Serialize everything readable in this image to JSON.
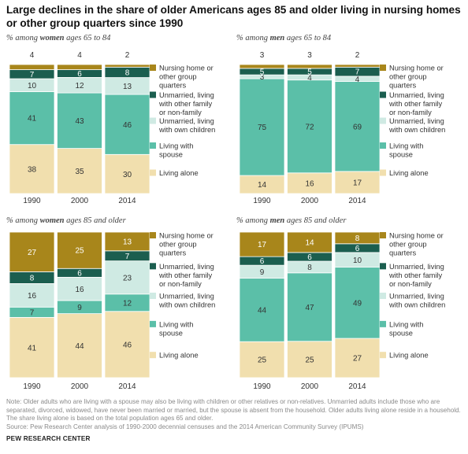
{
  "title": "Large declines in the share of older Americans ages 85 and older living in nursing homes or other group quarters since 1990",
  "categories_legend": [
    {
      "key": "nursing",
      "label_lines": [
        "Nursing home or",
        "other group",
        "quarters"
      ],
      "color": "#a8861b"
    },
    {
      "key": "unmarried_other",
      "label_lines": [
        "Unmarried, living",
        "with other family",
        "or non-family"
      ],
      "color": "#1b5e4f"
    },
    {
      "key": "unmarried_children",
      "label_lines": [
        "Unmarried, living",
        "with own children"
      ],
      "color": "#cfeae3"
    },
    {
      "key": "spouse",
      "label_lines": [
        "Living with",
        "spouse"
      ],
      "color": "#5bbfa8"
    },
    {
      "key": "alone",
      "label_lines": [
        "Living alone"
      ],
      "color": "#f1dfae"
    }
  ],
  "chart_data": [
    {
      "type": "bar",
      "stacked": true,
      "title_prefix": "% among ",
      "title_emph": "women",
      "title_suffix": " ages 65 to 84",
      "categories": [
        "1990",
        "2000",
        "2014"
      ],
      "series": [
        {
          "name": "Living alone",
          "key": "alone",
          "values": [
            38,
            35,
            30
          ]
        },
        {
          "name": "Living with spouse",
          "key": "spouse",
          "values": [
            41,
            43,
            46
          ]
        },
        {
          "name": "Unmarried, living with own children",
          "key": "unmarried_children",
          "values": [
            10,
            12,
            13
          ]
        },
        {
          "name": "Unmarried, living with other family or non-family",
          "key": "unmarried_other",
          "values": [
            7,
            6,
            8
          ]
        },
        {
          "name": "Nursing home or other group quarters",
          "key": "nursing",
          "values": [
            4,
            4,
            2
          ]
        }
      ]
    },
    {
      "type": "bar",
      "stacked": true,
      "title_prefix": "% among ",
      "title_emph": "men",
      "title_suffix": " ages 65 to 84",
      "categories": [
        "1990",
        "2000",
        "2014"
      ],
      "series": [
        {
          "name": "Living alone",
          "key": "alone",
          "values": [
            14,
            16,
            17
          ]
        },
        {
          "name": "Living with spouse",
          "key": "spouse",
          "values": [
            75,
            72,
            69
          ]
        },
        {
          "name": "Unmarried, living with own children",
          "key": "unmarried_children",
          "values": [
            3,
            4,
            4
          ]
        },
        {
          "name": "Unmarried, living with other family or non-family",
          "key": "unmarried_other",
          "values": [
            5,
            5,
            7
          ]
        },
        {
          "name": "Nursing home or other group quarters",
          "key": "nursing",
          "values": [
            3,
            3,
            2
          ]
        }
      ]
    },
    {
      "type": "bar",
      "stacked": true,
      "title_prefix": "% among ",
      "title_emph": "women",
      "title_suffix": " ages 85 and older",
      "categories": [
        "1990",
        "2000",
        "2014"
      ],
      "series": [
        {
          "name": "Living alone",
          "key": "alone",
          "values": [
            41,
            44,
            46
          ]
        },
        {
          "name": "Living with spouse",
          "key": "spouse",
          "values": [
            7,
            9,
            12
          ]
        },
        {
          "name": "Unmarried, living with own children",
          "key": "unmarried_children",
          "values": [
            16,
            16,
            23
          ]
        },
        {
          "name": "Unmarried, living with other family or non-family",
          "key": "unmarried_other",
          "values": [
            8,
            6,
            7
          ]
        },
        {
          "name": "Nursing home or other group quarters",
          "key": "nursing",
          "values": [
            27,
            25,
            13
          ]
        }
      ]
    },
    {
      "type": "bar",
      "stacked": true,
      "title_prefix": "% among ",
      "title_emph": "men",
      "title_suffix": " ages 85 and older",
      "categories": [
        "1990",
        "2000",
        "2014"
      ],
      "series": [
        {
          "name": "Living alone",
          "key": "alone",
          "values": [
            25,
            25,
            27
          ]
        },
        {
          "name": "Living with spouse",
          "key": "spouse",
          "values": [
            44,
            47,
            49
          ]
        },
        {
          "name": "Unmarried, living with own children",
          "key": "unmarried_children",
          "values": [
            9,
            8,
            10
          ]
        },
        {
          "name": "Unmarried, living with other family or non-family",
          "key": "unmarried_other",
          "values": [
            6,
            6,
            6
          ]
        },
        {
          "name": "Nursing home or other group quarters",
          "key": "nursing",
          "values": [
            17,
            14,
            8
          ]
        }
      ]
    }
  ],
  "note": "Note: Older adults who are living with a spouse may also be living with children or other relatives or non-relatives. Unmarried adults include those who are separated, divorced, widowed, have never been married or married, but the spouse is absent from the household. Older adults living alone reside in a household. The share living alone is based on the total population ages 65 and older.",
  "source": "Source: Pew Research Center analysis of 1990-2000 decennial censuses and the 2014 American Community Survey (IPUMS)",
  "brand": "PEW RESEARCH CENTER"
}
